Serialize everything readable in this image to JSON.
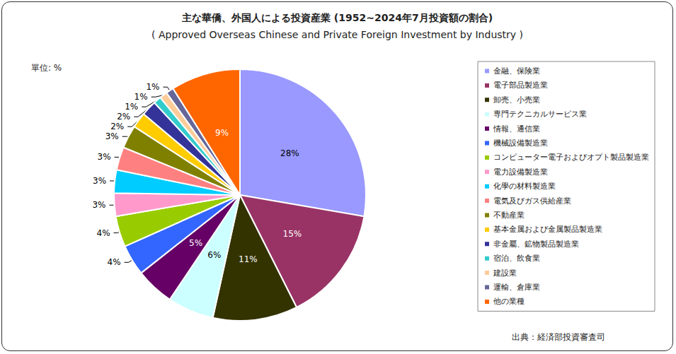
{
  "chart_data": {
    "type": "pie",
    "title": "主な華僑、外国人による投資産業 (1952~2024年7月投資額の割合)",
    "subtitle": "( Approved Overseas Chinese and Private Foreign Investment by Industry )",
    "unit_label": "單位: %",
    "source": "出典：経済部投資審査司",
    "categories": [
      "金融、保険業",
      "電子部品製造業",
      "卸売、小売業",
      "専門テクニカルサービス業",
      "情報、通信業",
      "機械設備製造業",
      "コンピューター電子およびオプト製品製造業",
      "電力設備製造業",
      "化學の材料製造業",
      "電気及びガス供給産業",
      "不動産業",
      "基本金属および金属製品製造業",
      "非金屬、鉱物製品製造業",
      "宿泊、飲食業",
      "建設業",
      "運輸、倉庫業",
      "他の業種"
    ],
    "values": [
      28,
      15,
      11,
      6,
      5,
      4,
      4,
      3,
      3,
      3,
      3,
      2,
      2,
      1,
      1,
      1,
      9
    ],
    "value_labels": [
      "28%",
      "15%",
      "11%",
      "6%",
      "5%",
      "4%",
      "4%",
      "3%",
      "3%",
      "3%",
      "3%",
      "2%",
      "2%",
      "1%",
      "1%",
      "1%",
      "9%"
    ],
    "colors": [
      "#9999ff",
      "#993366",
      "#333300",
      "#ccffff",
      "#660066",
      "#3366ff",
      "#99cc00",
      "#ff99cc",
      "#00ccff",
      "#ff8080",
      "#808000",
      "#ffcc00",
      "#333399",
      "#33cccc",
      "#ffcc99",
      "#666699",
      "#ff6600"
    ],
    "legend": "right",
    "data_labels": true
  }
}
